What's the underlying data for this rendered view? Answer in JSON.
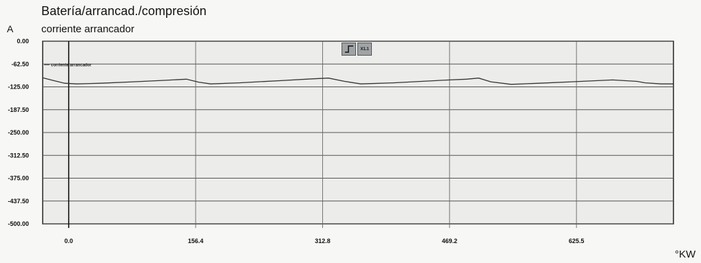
{
  "header": {
    "title": "Batería/arrancad./compresión",
    "unit": "A",
    "subtitle": "corriente arrancador",
    "x_unit": "°KW"
  },
  "controls": {
    "step_icon": "step-signal-icon",
    "zoom_label": "X1.1"
  },
  "chart_data": {
    "type": "line",
    "title": "Batería/arrancad./compresión",
    "ylabel": "A",
    "xlabel": "°KW",
    "xlim": [
      -32,
      745
    ],
    "ylim": [
      -500,
      0
    ],
    "y_ticks": [
      0,
      -62.5,
      -125,
      -187.5,
      -250,
      -312.5,
      -375,
      -437.5,
      -500
    ],
    "y_tick_labels": [
      "0.00",
      "-62.50",
      "-125.00",
      "-187.50",
      "-250.00",
      "-312.50",
      "-375.00",
      "-437.50",
      "-500.00"
    ],
    "x_ticks": [
      0,
      156.4,
      312.8,
      469.2,
      625.5
    ],
    "x_tick_labels": [
      "0.0",
      "156.4",
      "312.8",
      "469.2",
      "625.5"
    ],
    "grid": true,
    "legend": "top-left",
    "series": [
      {
        "name": "corriente arrancador",
        "color": "#333333",
        "x": [
          -32,
          -18,
          -5,
          10,
          40,
          80,
          120,
          145,
          160,
          175,
          210,
          260,
          300,
          320,
          340,
          360,
          400,
          460,
          490,
          505,
          520,
          545,
          580,
          620,
          670,
          700,
          710,
          730,
          745
        ],
        "y": [
          -100,
          -108,
          -115,
          -117,
          -115,
          -111,
          -107,
          -104,
          -112,
          -117,
          -114,
          -108,
          -103,
          -101,
          -110,
          -117,
          -114,
          -107,
          -104,
          -101,
          -111,
          -118,
          -115,
          -111,
          -106,
          -110,
          -114,
          -117,
          -117
        ]
      }
    ]
  }
}
